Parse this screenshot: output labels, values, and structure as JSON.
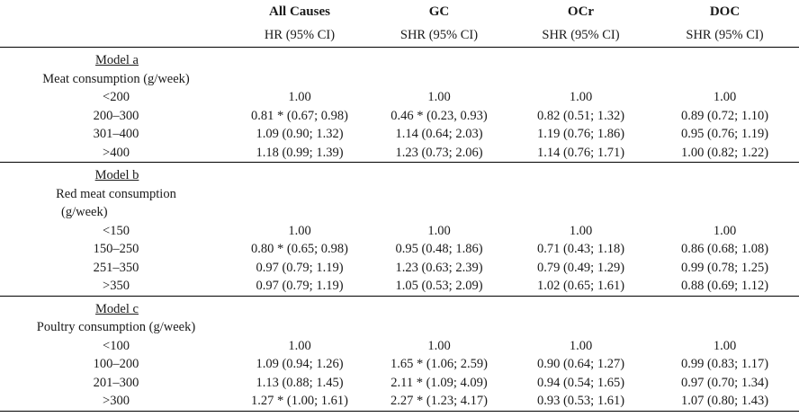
{
  "columns": {
    "all_causes": "All Causes",
    "gc": "GC",
    "ocr": "OCr",
    "doc": "DOC"
  },
  "subheaders": {
    "all_causes": "HR (95% CI)",
    "gc": "SHR (95% CI)",
    "ocr": "SHR (95% CI)",
    "doc": "SHR (95% CI)"
  },
  "model_a": {
    "title": "Model a",
    "label": "Meat consumption (g/week)",
    "rows": [
      {
        "cat": "<200",
        "all": "1.00",
        "gc": "1.00",
        "ocr": "1.00",
        "doc": "1.00"
      },
      {
        "cat": "200–300",
        "all": "0.81 * (0.67; 0.98)",
        "gc": "0.46 * (0.23, 0.93)",
        "ocr": "0.82 (0.51; 1.32)",
        "doc": "0.89 (0.72; 1.10)"
      },
      {
        "cat": "301–400",
        "all": "1.09 (0.90; 1.32)",
        "gc": "1.14 (0.64; 2.03)",
        "ocr": "1.19 (0.76; 1.86)",
        "doc": "0.95 (0.76; 1.19)"
      },
      {
        "cat": ">400",
        "all": "1.18 (0.99; 1.39)",
        "gc": "1.23 (0.73; 2.06)",
        "ocr": "1.14 (0.76; 1.71)",
        "doc": "1.00 (0.82; 1.22)"
      }
    ]
  },
  "model_b": {
    "title": "Model b",
    "label_line1": "Red meat consumption",
    "label_line2": "(g/week)",
    "rows": [
      {
        "cat": "<150",
        "all": "1.00",
        "gc": "1.00",
        "ocr": "1.00",
        "doc": "1.00"
      },
      {
        "cat": "150–250",
        "all": "0.80 * (0.65; 0.98)",
        "gc": "0.95 (0.48; 1.86)",
        "ocr": "0.71 (0.43; 1.18)",
        "doc": "0.86 (0.68; 1.08)"
      },
      {
        "cat": "251–350",
        "all": "0.97 (0.79; 1.19)",
        "gc": "1.23 (0.63; 2.39)",
        "ocr": "0.79 (0.49; 1.29)",
        "doc": "0.99 (0.78; 1.25)"
      },
      {
        "cat": ">350",
        "all": "0.97 (0.79; 1.19)",
        "gc": "1.05 (0.53; 2.09)",
        "ocr": "1.02 (0.65; 1.61)",
        "doc": "0.88 (0.69; 1.12)"
      }
    ]
  },
  "model_c": {
    "title": "Model c",
    "label": "Poultry consumption (g/week)",
    "rows": [
      {
        "cat": "<100",
        "all": "1.00",
        "gc": "1.00",
        "ocr": "1.00",
        "doc": "1.00"
      },
      {
        "cat": "100–200",
        "all": "1.09 (0.94; 1.26)",
        "gc": "1.65 * (1.06; 2.59)",
        "ocr": "0.90 (0.64; 1.27)",
        "doc": "0.99 (0.83; 1.17)"
      },
      {
        "cat": "201–300",
        "all": "1.13 (0.88; 1.45)",
        "gc": "2.11 * (1.09; 4.09)",
        "ocr": "0.94 (0.54; 1.65)",
        "doc": "0.97 (0.70; 1.34)"
      },
      {
        "cat": ">300",
        "all": "1.27 * (1.00; 1.61)",
        "gc": "2.27 * (1.23; 4.17)",
        "ocr": "0.93 (0.53; 1.61)",
        "doc": "1.07 (0.80; 1.43)"
      }
    ]
  }
}
